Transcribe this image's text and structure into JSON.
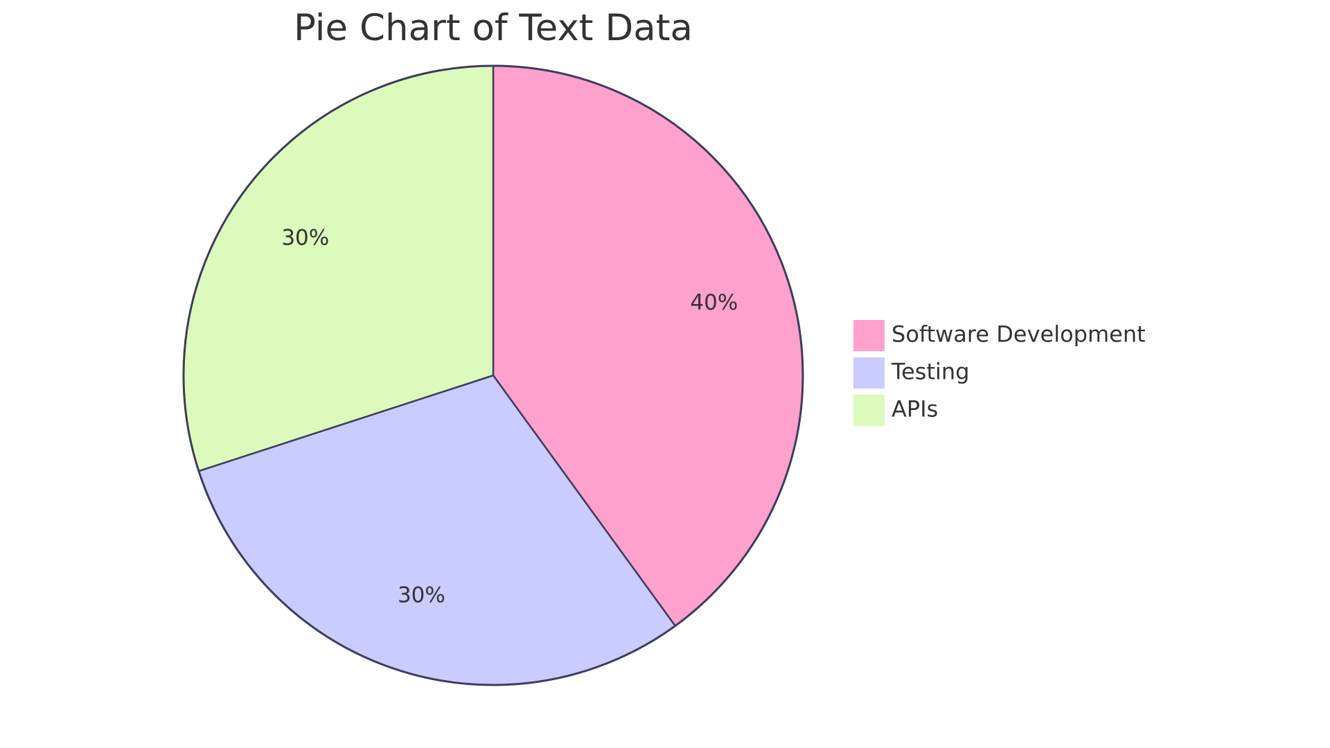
{
  "chart_data": {
    "type": "pie",
    "title": "Pie Chart of Text Data",
    "slices": [
      {
        "label": "Software Development",
        "value": 40,
        "display": "40%",
        "color": "#ffa1cd"
      },
      {
        "label": "Testing",
        "value": 30,
        "display": "30%",
        "color": "#cacbfe"
      },
      {
        "label": "APIs",
        "value": 30,
        "display": "30%",
        "color": "#dcfabb"
      }
    ],
    "legend_placement": "right",
    "start_angle": "top, clockwise"
  }
}
